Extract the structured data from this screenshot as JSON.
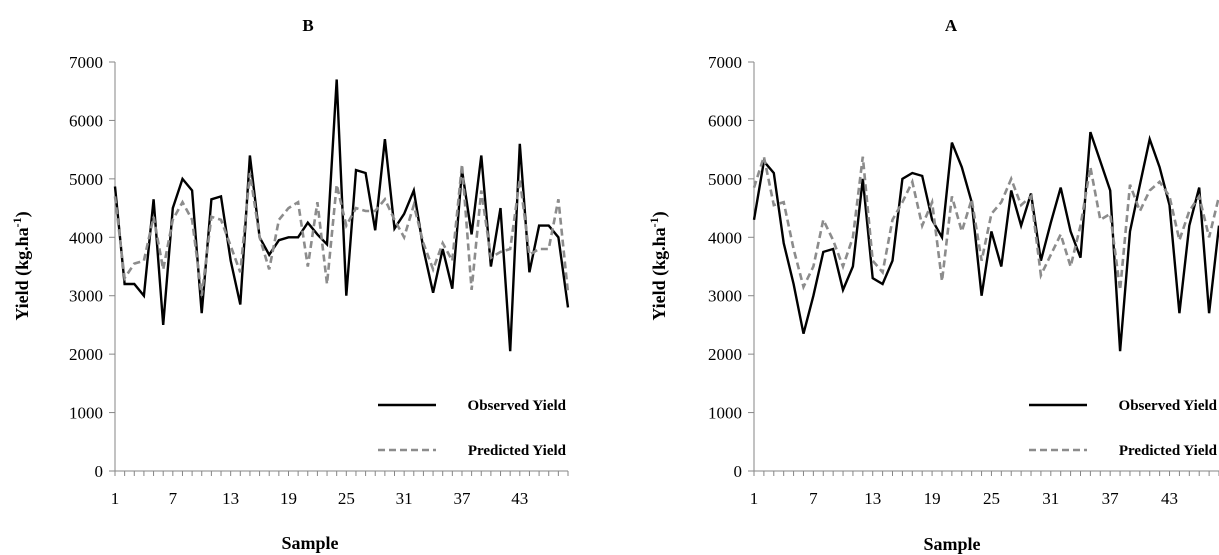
{
  "figure": {
    "charts": [
      {
        "title": "B",
        "xlabel": "Sample",
        "ylabel": "Yield (kg.ha",
        "ylabel_sup": "-1",
        "ylabel_end": ")"
      },
      {
        "title": "A",
        "xlabel": "Sample",
        "ylabel": "Yield (kg.ha",
        "ylabel_sup": "-1",
        "ylabel_end": ")"
      }
    ]
  },
  "chart_data": [
    {
      "type": "line",
      "title": "B",
      "xlabel": "Sample",
      "ylabel": "Yield (kg.ha-1)",
      "ylim": [
        0,
        7000
      ],
      "yticks": [
        0,
        1000,
        2000,
        3000,
        4000,
        5000,
        6000,
        7000
      ],
      "xlim": [
        1,
        48
      ],
      "xticks": [
        1,
        7,
        13,
        19,
        25,
        31,
        37,
        43
      ],
      "grid": false,
      "legend_position": "bottom-right",
      "x": [
        1,
        2,
        3,
        4,
        5,
        6,
        7,
        8,
        9,
        10,
        11,
        12,
        13,
        14,
        15,
        16,
        17,
        18,
        19,
        20,
        21,
        22,
        23,
        24,
        25,
        26,
        27,
        28,
        29,
        30,
        31,
        32,
        33,
        34,
        35,
        36,
        37,
        38,
        39,
        40,
        41,
        42,
        43,
        44,
        45,
        46,
        47,
        48
      ],
      "series": [
        {
          "name": "Observed Yield",
          "color": "#000000",
          "dash": "solid",
          "values": [
            4870,
            3200,
            3200,
            3000,
            4650,
            2500,
            4500,
            5000,
            4800,
            2700,
            4650,
            4700,
            3600,
            2850,
            5400,
            4000,
            3700,
            3950,
            4000,
            4000,
            4250,
            4050,
            3880,
            6700,
            3000,
            5150,
            5100,
            4120,
            5680,
            4150,
            4400,
            4800,
            3800,
            3050,
            3800,
            3120,
            5150,
            4050,
            5400,
            3500,
            4500,
            2050,
            5600,
            3400,
            4200,
            4200,
            4000,
            2800
          ]
        },
        {
          "name": "Predicted Yield",
          "color": "#8c8c8c",
          "dash": "dashed",
          "values": [
            4700,
            3300,
            3550,
            3600,
            4350,
            3450,
            4300,
            4600,
            4300,
            3000,
            4350,
            4300,
            3850,
            3400,
            5100,
            4000,
            3450,
            4300,
            4500,
            4600,
            3500,
            4600,
            3200,
            4900,
            4200,
            4500,
            4450,
            4450,
            4650,
            4300,
            4000,
            4550,
            3900,
            3450,
            3900,
            3600,
            5250,
            3100,
            4800,
            3650,
            3750,
            3800,
            5000,
            3700,
            3800,
            3800,
            4650,
            3050
          ]
        }
      ]
    },
    {
      "type": "line",
      "title": "A",
      "xlabel": "Sample",
      "ylabel": "Yield (kg.ha-1)",
      "ylim": [
        0,
        7000
      ],
      "yticks": [
        0,
        1000,
        2000,
        3000,
        4000,
        5000,
        6000,
        7000
      ],
      "xlim": [
        1,
        48
      ],
      "xticks": [
        1,
        7,
        13,
        19,
        25,
        31,
        37,
        43
      ],
      "grid": false,
      "legend_position": "bottom-right",
      "x": [
        1,
        2,
        3,
        4,
        5,
        6,
        7,
        8,
        9,
        10,
        11,
        12,
        13,
        14,
        15,
        16,
        17,
        18,
        19,
        20,
        21,
        22,
        23,
        24,
        25,
        26,
        27,
        28,
        29,
        30,
        31,
        32,
        33,
        34,
        35,
        36,
        37,
        38,
        39,
        40,
        41,
        42,
        43,
        44,
        45,
        46,
        47,
        48
      ],
      "series": [
        {
          "name": "Observed Yield",
          "color": "#000000",
          "dash": "solid",
          "values": [
            4300,
            5300,
            5100,
            3900,
            3200,
            2350,
            3000,
            3750,
            3800,
            3100,
            3500,
            5000,
            3300,
            3200,
            3600,
            5000,
            5100,
            5050,
            4300,
            4000,
            5620,
            5200,
            4600,
            3000,
            4100,
            3500,
            4800,
            4200,
            4750,
            3600,
            4250,
            4850,
            4100,
            3650,
            5800,
            5300,
            4800,
            2050,
            4100,
            4900,
            5680,
            5200,
            4550,
            2700,
            4200,
            4850,
            2700,
            4200
          ]
        },
        {
          "name": "Predicted Yield",
          "color": "#8c8c8c",
          "dash": "dashed",
          "values": [
            4850,
            5380,
            4550,
            4600,
            3800,
            3150,
            3500,
            4300,
            3950,
            3500,
            4000,
            5380,
            3600,
            3400,
            4300,
            4600,
            4950,
            4200,
            4600,
            3250,
            4700,
            4100,
            4650,
            3600,
            4400,
            4600,
            5000,
            4550,
            4700,
            3350,
            3700,
            4050,
            3500,
            4200,
            5200,
            4300,
            4400,
            3100,
            4900,
            4450,
            4800,
            4950,
            4700,
            3950,
            4450,
            4700,
            4000,
            4700
          ]
        }
      ]
    }
  ]
}
